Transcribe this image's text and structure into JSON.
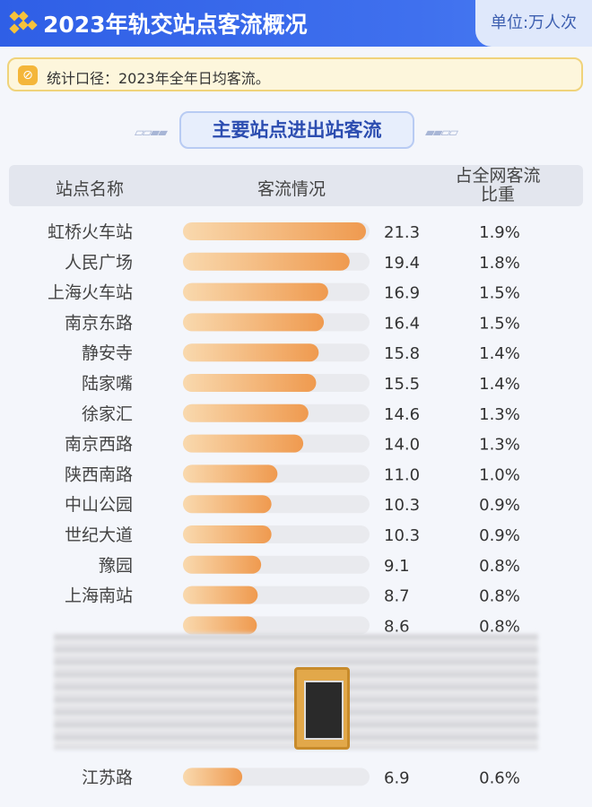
{
  "header": {
    "title": "2023年轨交站点客流概况",
    "unit": "单位:万人次"
  },
  "note": {
    "text": "统计口径：2023年全年日均客流。"
  },
  "section_title": "主要站点进出站客流",
  "table": {
    "col_name": "站点名称",
    "col_flow": "客流情况",
    "col_share_line1": "占全网客流",
    "col_share_line2": "比重"
  },
  "colors": {
    "header_bg": "#3565eb",
    "bar_fill_start": "#f9d9ae",
    "bar_fill_end": "#ef9a4f",
    "bar_track": "#e9eaee"
  },
  "chart_data": {
    "type": "bar",
    "orientation": "horizontal",
    "title": "主要站点进出站客流",
    "unit": "万人次",
    "categories": [
      "虹桥火车站",
      "人民广场",
      "上海火车站",
      "南京东路",
      "静安寺",
      "陆家嘴",
      "徐家汇",
      "南京西路",
      "陕西南路",
      "中山公园",
      "世纪大道",
      "豫园",
      "上海南站",
      "",
      "",
      "",
      "",
      "",
      "江苏路"
    ],
    "values": [
      21.3,
      19.4,
      16.9,
      16.4,
      15.8,
      15.5,
      14.6,
      14.0,
      11.0,
      10.3,
      10.3,
      9.1,
      8.7,
      8.6,
      null,
      null,
      null,
      null,
      6.9
    ],
    "value_labels": [
      "21.3",
      "19.4",
      "16.9",
      "16.4",
      "15.8",
      "15.5",
      "14.6",
      "14.0",
      "11.0",
      "10.3",
      "10.3",
      "9.1",
      "8.7",
      "8.6",
      "",
      "",
      "",
      "",
      "6.9"
    ],
    "share_labels": [
      "1.9%",
      "1.8%",
      "1.5%",
      "1.5%",
      "1.4%",
      "1.4%",
      "1.3%",
      "1.3%",
      "1.0%",
      "0.9%",
      "0.9%",
      "0.8%",
      "0.8%",
      "0.8%",
      "",
      "",
      "",
      "",
      "0.6%"
    ],
    "xlim": [
      0,
      21.3
    ]
  }
}
